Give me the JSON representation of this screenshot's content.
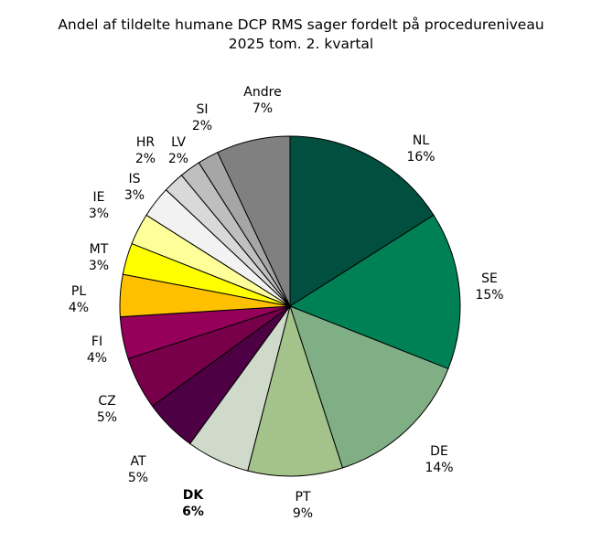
{
  "chart_data": {
    "type": "pie",
    "title": "Andel af tildelte humane DCP RMS sager fordelt på procedureniveau",
    "subtitle": "2025 tom. 2. kvartal",
    "unit": "%",
    "slices": [
      {
        "label": "NL",
        "value": 16,
        "color": "#004F3F"
      },
      {
        "label": "SE",
        "value": 15,
        "color": "#008055"
      },
      {
        "label": "DE",
        "value": 14,
        "color": "#80AF85"
      },
      {
        "label": "PT",
        "value": 9,
        "color": "#A4C38A"
      },
      {
        "label": "DK",
        "value": 6,
        "color": "#CFDACB",
        "bold": true
      },
      {
        "label": "AT",
        "value": 5,
        "color": "#4D0043"
      },
      {
        "label": "CZ",
        "value": 5,
        "color": "#78004B"
      },
      {
        "label": "FI",
        "value": 4,
        "color": "#94005A"
      },
      {
        "label": "PL",
        "value": 4,
        "color": "#FFC000"
      },
      {
        "label": "MT",
        "value": 3,
        "color": "#FFFF00"
      },
      {
        "label": "IE",
        "value": 3,
        "color": "#FFFF99"
      },
      {
        "label": "IS",
        "value": 3,
        "color": "#F2F2F2"
      },
      {
        "label": "HR",
        "value": 2,
        "color": "#D9D9D9"
      },
      {
        "label": "LV",
        "value": 2,
        "color": "#BFBFBF"
      },
      {
        "label": "SI",
        "value": 2,
        "color": "#A6A6A6"
      },
      {
        "label": "Andre",
        "value": 7,
        "color": "#808080"
      }
    ],
    "start": "top",
    "direction": "clockwise",
    "legend": "none"
  }
}
